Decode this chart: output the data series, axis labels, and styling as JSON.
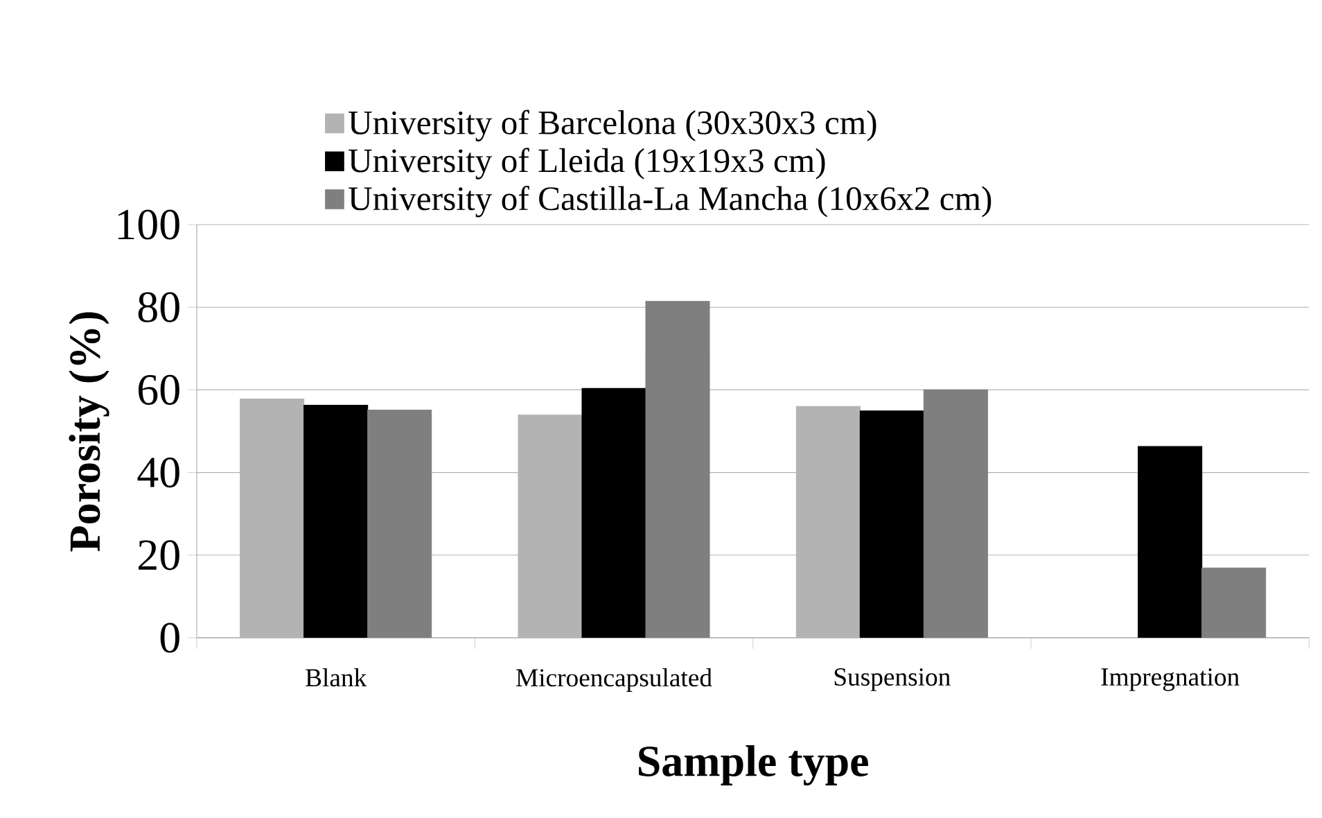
{
  "chart_data": {
    "type": "bar",
    "xlabel": "Sample type",
    "ylabel": "Porosity (%)",
    "categories": [
      "Blank",
      "Microencapsulated",
      "Suspension",
      "Impregnation"
    ],
    "series": [
      {
        "name": "University of Barcelona (30x30x3 cm)",
        "color": "#b3b3b3",
        "values": [
          57.8,
          53.9,
          56.0,
          null
        ]
      },
      {
        "name": "University of Lleida (19x19x3 cm)",
        "color": "#000000",
        "values": [
          56.3,
          60.4,
          54.9,
          46.3
        ]
      },
      {
        "name": "University of Castilla-La Mancha (10x6x2 cm)",
        "color": "#7f7f7f",
        "values": [
          55.1,
          81.4,
          60.0,
          16.9
        ]
      }
    ],
    "ylim": [
      0,
      100
    ],
    "yticks": [
      0,
      20,
      40,
      60,
      80,
      100
    ],
    "grid": "y",
    "legend": "top"
  }
}
